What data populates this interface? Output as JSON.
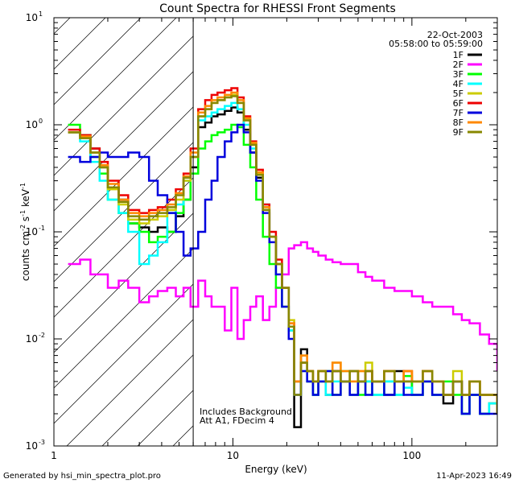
{
  "chart_data": {
    "type": "line",
    "title": "Count Spectra for RHESSI Front Segments",
    "xlabel": "Energy (keV)",
    "ylabel_parts": [
      "counts cm",
      "-2",
      " s",
      "-1",
      " keV",
      "-1"
    ],
    "xscale": "log",
    "yscale": "log",
    "xlim": [
      1,
      300
    ],
    "ylim": [
      0.001,
      10
    ],
    "x_ticks": [
      {
        "v": 1,
        "label": "1"
      },
      {
        "v": 10,
        "label": "10"
      },
      {
        "v": 100,
        "label": "100"
      }
    ],
    "y_ticks": [
      {
        "v": 0.001,
        "base": "10",
        "exp": "-3"
      },
      {
        "v": 0.01,
        "base": "10",
        "exp": "-2"
      },
      {
        "v": 0.1,
        "base": "10",
        "exp": "-1"
      },
      {
        "v": 1,
        "base": "10",
        "exp": "0"
      },
      {
        "v": 10,
        "base": "10",
        "exp": "1"
      }
    ],
    "hatched_region_upper_kev": 6,
    "legend_position": "top-right",
    "legend_header": [
      "22-Oct-2003",
      "05:58:00 to 05:59:00"
    ],
    "annotations": [
      "Includes Background",
      "Att A1, FDecim  4"
    ],
    "series": [
      {
        "name": "1F",
        "color": "#000000",
        "x": [
          1.2,
          1.4,
          1.6,
          1.8,
          2.0,
          2.3,
          2.6,
          3.0,
          3.4,
          3.8,
          4.3,
          4.8,
          5.3,
          5.8,
          6.4,
          7.0,
          7.6,
          8.2,
          9.0,
          9.8,
          10.6,
          11.5,
          12.5,
          13.5,
          14.7,
          16.0,
          17.4,
          18.8,
          20.5,
          22.0,
          24.0,
          26,
          28,
          30,
          33,
          36,
          40,
          45,
          50,
          55,
          60,
          70,
          80,
          90,
          100,
          115,
          130,
          150,
          170,
          190,
          210,
          240,
          270,
          300
        ],
        "y": [
          0.85,
          0.8,
          0.6,
          0.4,
          0.26,
          0.2,
          0.12,
          0.11,
          0.1,
          0.11,
          0.1,
          0.14,
          0.2,
          0.4,
          0.95,
          1.05,
          1.2,
          1.25,
          1.35,
          1.45,
          1.3,
          0.9,
          0.55,
          0.32,
          0.16,
          0.09,
          0.05,
          0.03,
          0.013,
          0.0015,
          0.008,
          0.004,
          0.003,
          0.004,
          0.003,
          0.005,
          0.004,
          0.003,
          0.004,
          0.005,
          0.004,
          0.003,
          0.005,
          0.004,
          0.003,
          0.004,
          0.003,
          0.0025,
          0.004,
          0.002,
          0.003,
          0.002,
          0.0025,
          0.002
        ]
      },
      {
        "name": "2F",
        "color": "#ff00ff",
        "x": [
          1.2,
          1.4,
          1.6,
          1.8,
          2.0,
          2.3,
          2.6,
          3.0,
          3.4,
          3.8,
          4.3,
          4.8,
          5.3,
          5.8,
          6.4,
          7.0,
          7.6,
          8.2,
          9.0,
          9.8,
          10.6,
          11.5,
          12.5,
          13.5,
          14.7,
          16.0,
          17.4,
          18.8,
          20.5,
          22.0,
          24.0,
          26,
          28,
          30,
          33,
          36,
          40,
          45,
          50,
          55,
          60,
          70,
          80,
          90,
          100,
          115,
          130,
          150,
          170,
          190,
          210,
          240,
          270,
          300
        ],
        "y": [
          0.05,
          0.055,
          0.04,
          0.04,
          0.03,
          0.035,
          0.03,
          0.022,
          0.025,
          0.028,
          0.03,
          0.025,
          0.03,
          0.02,
          0.035,
          0.025,
          0.02,
          0.02,
          0.012,
          0.03,
          0.01,
          0.015,
          0.02,
          0.025,
          0.015,
          0.02,
          0.03,
          0.04,
          0.07,
          0.075,
          0.08,
          0.07,
          0.065,
          0.06,
          0.055,
          0.052,
          0.05,
          0.05,
          0.042,
          0.038,
          0.035,
          0.03,
          0.028,
          0.028,
          0.025,
          0.022,
          0.02,
          0.02,
          0.017,
          0.015,
          0.014,
          0.011,
          0.009,
          0.005
        ]
      },
      {
        "name": "3F",
        "color": "#00ff00",
        "x": [
          1.2,
          1.4,
          1.6,
          1.8,
          2.0,
          2.3,
          2.6,
          3.0,
          3.4,
          3.8,
          4.3,
          4.8,
          5.3,
          5.8,
          6.4,
          7.0,
          7.6,
          8.2,
          9.0,
          9.8,
          10.6,
          11.5,
          12.5,
          13.5,
          14.7,
          16.0,
          17.4,
          18.8,
          20.5,
          22.0,
          24.0,
          26,
          28,
          30,
          33,
          36,
          40,
          45,
          50,
          55,
          60,
          70,
          80,
          90,
          100,
          115,
          130,
          150,
          170,
          190,
          210,
          240,
          270,
          300
        ],
        "y": [
          1.0,
          0.8,
          0.5,
          0.35,
          0.2,
          0.15,
          0.12,
          0.1,
          0.08,
          0.09,
          0.1,
          0.15,
          0.2,
          0.35,
          0.6,
          0.7,
          0.8,
          0.85,
          0.9,
          1.0,
          0.95,
          0.65,
          0.4,
          0.2,
          0.09,
          0.05,
          0.03,
          0.02,
          0.012,
          0.004,
          0.006,
          0.004,
          0.003,
          0.004,
          0.005,
          0.003,
          0.004,
          0.005,
          0.003,
          0.004,
          0.003,
          0.004,
          0.003,
          0.0045,
          0.003,
          0.004,
          0.003,
          0.004,
          0.003,
          0.002,
          0.003,
          0.002,
          0.0025,
          0.002
        ]
      },
      {
        "name": "4F",
        "color": "#00ffff",
        "x": [
          1.2,
          1.4,
          1.6,
          1.8,
          2.0,
          2.3,
          2.6,
          3.0,
          3.4,
          3.8,
          4.3,
          4.8,
          5.3,
          5.8,
          6.4,
          7.0,
          7.6,
          8.2,
          9.0,
          9.8,
          10.6,
          11.5,
          12.5,
          13.5,
          14.7,
          16.0,
          17.4,
          18.8,
          20.5,
          22.0,
          24.0,
          26,
          28,
          30,
          33,
          36,
          40,
          45,
          50,
          55,
          60,
          70,
          80,
          90,
          100,
          115,
          130,
          150,
          170,
          190,
          210,
          240,
          270,
          300
        ],
        "y": [
          0.85,
          0.7,
          0.45,
          0.3,
          0.2,
          0.15,
          0.1,
          0.05,
          0.06,
          0.08,
          0.15,
          0.18,
          0.3,
          0.5,
          1.1,
          1.2,
          1.3,
          1.4,
          1.5,
          1.6,
          1.4,
          1.0,
          0.6,
          0.35,
          0.18,
          0.09,
          0.05,
          0.03,
          0.012,
          0.003,
          0.005,
          0.004,
          0.003,
          0.004,
          0.003,
          0.004,
          0.005,
          0.003,
          0.004,
          0.004,
          0.003,
          0.004,
          0.003,
          0.0035,
          0.003,
          0.004,
          0.003,
          0.003,
          0.004,
          0.002,
          0.003,
          0.002,
          0.0025,
          0.002
        ]
      },
      {
        "name": "5F",
        "color": "#cccc00",
        "x": [
          1.2,
          1.4,
          1.6,
          1.8,
          2.0,
          2.3,
          2.6,
          3.0,
          3.4,
          3.8,
          4.3,
          4.8,
          5.3,
          5.8,
          6.4,
          7.0,
          7.6,
          8.2,
          9.0,
          9.8,
          10.6,
          11.5,
          12.5,
          13.5,
          14.7,
          16.0,
          17.4,
          18.8,
          20.5,
          22.0,
          24.0,
          26,
          28,
          30,
          33,
          36,
          40,
          45,
          50,
          55,
          60,
          70,
          80,
          90,
          100,
          115,
          130,
          150,
          170,
          190,
          210,
          240,
          270,
          300
        ],
        "y": [
          0.85,
          0.75,
          0.55,
          0.4,
          0.25,
          0.18,
          0.13,
          0.12,
          0.13,
          0.14,
          0.16,
          0.2,
          0.3,
          0.5,
          1.2,
          1.4,
          1.6,
          1.7,
          1.8,
          1.9,
          1.6,
          1.1,
          0.65,
          0.35,
          0.17,
          0.09,
          0.05,
          0.03,
          0.015,
          0.004,
          0.007,
          0.005,
          0.004,
          0.005,
          0.004,
          0.006,
          0.005,
          0.004,
          0.005,
          0.006,
          0.004,
          0.005,
          0.004,
          0.005,
          0.004,
          0.005,
          0.004,
          0.003,
          0.005,
          0.003,
          0.004,
          0.003,
          0.003,
          0.0025
        ]
      },
      {
        "name": "6F",
        "color": "#ee0000",
        "x": [
          1.2,
          1.4,
          1.6,
          1.8,
          2.0,
          2.3,
          2.6,
          3.0,
          3.4,
          3.8,
          4.3,
          4.8,
          5.3,
          5.8,
          6.4,
          7.0,
          7.6,
          8.2,
          9.0,
          9.8,
          10.6,
          11.5,
          12.5,
          13.5,
          14.7,
          16.0,
          17.4,
          18.8,
          20.5,
          22.0,
          24.0,
          26,
          28,
          30,
          33,
          36,
          40,
          45,
          50,
          55,
          60,
          70,
          80,
          90,
          100,
          115,
          130,
          150,
          170,
          190,
          210,
          240,
          270,
          300
        ],
        "y": [
          0.9,
          0.8,
          0.6,
          0.45,
          0.3,
          0.22,
          0.16,
          0.15,
          0.16,
          0.17,
          0.2,
          0.25,
          0.35,
          0.6,
          1.4,
          1.7,
          1.9,
          2.0,
          2.1,
          2.2,
          1.8,
          1.2,
          0.7,
          0.38,
          0.18,
          0.1,
          0.055,
          0.03,
          0.014,
          0.004,
          0.006,
          0.005,
          0.004,
          0.005,
          0.004,
          0.005,
          0.004,
          0.005,
          0.004,
          0.005,
          0.004,
          0.005,
          0.004,
          0.005,
          0.004,
          0.005,
          0.004,
          0.003,
          0.004,
          0.003,
          0.004,
          0.003,
          0.003,
          0.002
        ]
      },
      {
        "name": "7F",
        "color": "#0000dd",
        "x": [
          1.2,
          1.4,
          1.6,
          1.8,
          2.0,
          2.3,
          2.6,
          3.0,
          3.4,
          3.8,
          4.3,
          4.8,
          5.3,
          5.8,
          6.4,
          7.0,
          7.6,
          8.2,
          9.0,
          9.8,
          10.6,
          11.5,
          12.5,
          13.5,
          14.7,
          16.0,
          17.4,
          18.8,
          20.5,
          22.0,
          24.0,
          26,
          28,
          30,
          33,
          36,
          40,
          45,
          50,
          55,
          60,
          70,
          80,
          90,
          100,
          115,
          130,
          150,
          170,
          190,
          210,
          240,
          270,
          300
        ],
        "y": [
          0.5,
          0.45,
          0.5,
          0.55,
          0.5,
          0.5,
          0.55,
          0.5,
          0.3,
          0.22,
          0.15,
          0.1,
          0.06,
          0.07,
          0.1,
          0.2,
          0.3,
          0.5,
          0.7,
          0.85,
          1.0,
          0.85,
          0.55,
          0.3,
          0.15,
          0.08,
          0.04,
          0.02,
          0.01,
          0.003,
          0.005,
          0.004,
          0.003,
          0.004,
          0.005,
          0.003,
          0.004,
          0.003,
          0.004,
          0.003,
          0.004,
          0.003,
          0.004,
          0.003,
          0.003,
          0.004,
          0.003,
          0.003,
          0.004,
          0.002,
          0.003,
          0.002,
          0.002,
          0.002
        ]
      },
      {
        "name": "8F",
        "color": "#ff8800",
        "x": [
          1.2,
          1.4,
          1.6,
          1.8,
          2.0,
          2.3,
          2.6,
          3.0,
          3.4,
          3.8,
          4.3,
          4.8,
          5.3,
          5.8,
          6.4,
          7.0,
          7.6,
          8.2,
          9.0,
          9.8,
          10.6,
          11.5,
          12.5,
          13.5,
          14.7,
          16.0,
          17.4,
          18.8,
          20.5,
          22.0,
          24.0,
          26,
          28,
          30,
          33,
          36,
          40,
          45,
          50,
          55,
          60,
          70,
          80,
          90,
          100,
          115,
          130,
          150,
          170,
          190,
          210,
          240,
          270,
          300
        ],
        "y": [
          0.85,
          0.78,
          0.55,
          0.42,
          0.28,
          0.2,
          0.15,
          0.14,
          0.15,
          0.16,
          0.18,
          0.23,
          0.33,
          0.55,
          1.3,
          1.5,
          1.7,
          1.8,
          1.9,
          2.0,
          1.7,
          1.15,
          0.68,
          0.36,
          0.17,
          0.09,
          0.05,
          0.03,
          0.014,
          0.004,
          0.007,
          0.005,
          0.004,
          0.005,
          0.004,
          0.006,
          0.005,
          0.004,
          0.005,
          0.005,
          0.004,
          0.005,
          0.004,
          0.005,
          0.004,
          0.005,
          0.004,
          0.003,
          0.004,
          0.003,
          0.004,
          0.003,
          0.003,
          0.002
        ]
      },
      {
        "name": "9F",
        "color": "#888800",
        "x": [
          1.2,
          1.4,
          1.6,
          1.8,
          2.0,
          2.3,
          2.6,
          3.0,
          3.4,
          3.8,
          4.3,
          4.8,
          5.3,
          5.8,
          6.4,
          7.0,
          7.6,
          8.2,
          9.0,
          9.8,
          10.6,
          11.5,
          12.5,
          13.5,
          14.7,
          16.0,
          17.4,
          18.8,
          20.5,
          22.0,
          24.0,
          26,
          28,
          30,
          33,
          36,
          40,
          45,
          50,
          55,
          60,
          70,
          80,
          90,
          100,
          115,
          130,
          150,
          170,
          190,
          210,
          240,
          270,
          300
        ],
        "y": [
          0.85,
          0.75,
          0.55,
          0.4,
          0.26,
          0.19,
          0.14,
          0.13,
          0.14,
          0.15,
          0.17,
          0.22,
          0.32,
          0.5,
          1.2,
          1.4,
          1.6,
          1.7,
          1.8,
          1.85,
          1.6,
          1.1,
          0.65,
          0.34,
          0.16,
          0.09,
          0.05,
          0.03,
          0.013,
          0.003,
          0.006,
          0.005,
          0.004,
          0.005,
          0.004,
          0.005,
          0.004,
          0.005,
          0.004,
          0.005,
          0.004,
          0.005,
          0.004,
          0.004,
          0.004,
          0.005,
          0.004,
          0.003,
          0.004,
          0.003,
          0.004,
          0.003,
          0.003,
          0.002
        ]
      }
    ]
  },
  "footer": {
    "generated_by": "Generated by hsi_min_spectra_plot.pro",
    "timestamp": "11-Apr-2023 16:49"
  }
}
